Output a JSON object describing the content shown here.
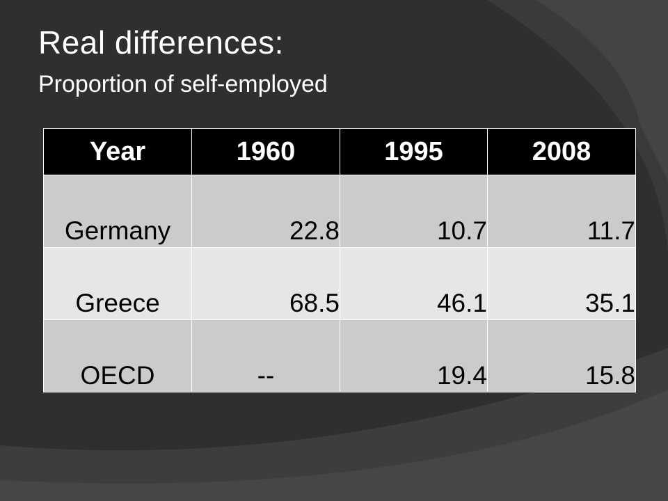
{
  "slide": {
    "title": "Real differences:",
    "subtitle": "Proportion of self-employed"
  },
  "table": {
    "headers": [
      "Year",
      "1960",
      "1995",
      "2008"
    ],
    "rows": [
      {
        "country": "Germany",
        "v1960": "22.8",
        "v1995": "10.7",
        "v2008": "11.7"
      },
      {
        "country": "Greece",
        "v1960": "68.5",
        "v1995": "46.1",
        "v2008": "35.1"
      },
      {
        "country": "OECD",
        "v1960": "--",
        "v1995": "19.4",
        "v2008": "15.8"
      }
    ]
  },
  "colors": {
    "background": "#2f2f2f",
    "header_fill": "#000000",
    "row_dark": "#cbcbcb",
    "row_light": "#e6e6e6"
  }
}
